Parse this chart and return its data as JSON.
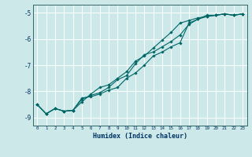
{
  "xlabel": "Humidex (Indice chaleur)",
  "background_color": "#cce8e8",
  "grid_color": "#ffffff",
  "line_color": "#006666",
  "xlim": [
    -0.5,
    23.5
  ],
  "ylim": [
    -9.3,
    -4.7
  ],
  "yticks": [
    -9,
    -8,
    -7,
    -6,
    -5
  ],
  "xticks": [
    0,
    1,
    2,
    3,
    4,
    5,
    6,
    7,
    8,
    9,
    10,
    11,
    12,
    13,
    14,
    15,
    16,
    17,
    18,
    19,
    20,
    21,
    22,
    23
  ],
  "series": [
    [
      [
        0,
        -8.5
      ],
      [
        1,
        -8.85
      ],
      [
        2,
        -8.65
      ],
      [
        3,
        -8.75
      ],
      [
        4,
        -8.72
      ],
      [
        5,
        -8.4
      ],
      [
        6,
        -8.1
      ],
      [
        7,
        -7.85
      ],
      [
        8,
        -7.75
      ],
      [
        9,
        -7.5
      ],
      [
        10,
        -7.25
      ],
      [
        11,
        -6.85
      ],
      [
        12,
        -6.65
      ],
      [
        13,
        -6.35
      ],
      [
        14,
        -6.05
      ],
      [
        15,
        -5.75
      ],
      [
        16,
        -5.4
      ],
      [
        17,
        -5.3
      ],
      [
        18,
        -5.2
      ],
      [
        19,
        -5.15
      ],
      [
        20,
        -5.1
      ],
      [
        21,
        -5.05
      ],
      [
        22,
        -5.1
      ],
      [
        23,
        -5.05
      ]
    ],
    [
      [
        0,
        -8.5
      ],
      [
        1,
        -8.85
      ],
      [
        2,
        -8.65
      ],
      [
        3,
        -8.75
      ],
      [
        4,
        -8.72
      ],
      [
        5,
        -8.3
      ],
      [
        6,
        -8.15
      ],
      [
        7,
        -8.05
      ],
      [
        8,
        -7.85
      ],
      [
        9,
        -7.55
      ],
      [
        10,
        -7.4
      ],
      [
        11,
        -6.95
      ],
      [
        12,
        -6.6
      ],
      [
        13,
        -6.5
      ],
      [
        14,
        -6.3
      ],
      [
        15,
        -6.1
      ],
      [
        16,
        -5.85
      ],
      [
        17,
        -5.45
      ],
      [
        18,
        -5.25
      ],
      [
        19,
        -5.15
      ],
      [
        20,
        -5.1
      ],
      [
        21,
        -5.05
      ],
      [
        22,
        -5.1
      ],
      [
        23,
        -5.05
      ]
    ],
    [
      [
        0,
        -8.5
      ],
      [
        1,
        -8.85
      ],
      [
        2,
        -8.65
      ],
      [
        3,
        -8.75
      ],
      [
        4,
        -8.72
      ],
      [
        5,
        -8.25
      ],
      [
        6,
        -8.2
      ],
      [
        7,
        -8.1
      ],
      [
        8,
        -7.95
      ],
      [
        9,
        -7.85
      ],
      [
        10,
        -7.5
      ],
      [
        11,
        -7.3
      ],
      [
        12,
        -7.0
      ],
      [
        13,
        -6.65
      ],
      [
        14,
        -6.5
      ],
      [
        15,
        -6.3
      ],
      [
        16,
        -6.15
      ],
      [
        17,
        -5.4
      ],
      [
        18,
        -5.25
      ],
      [
        19,
        -5.1
      ],
      [
        20,
        -5.1
      ],
      [
        21,
        -5.05
      ],
      [
        22,
        -5.1
      ],
      [
        23,
        -5.05
      ]
    ]
  ]
}
